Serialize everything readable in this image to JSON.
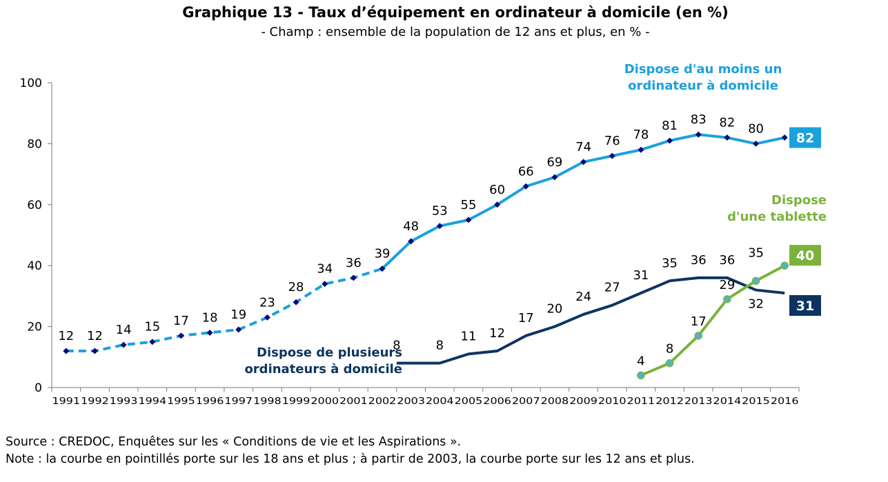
{
  "header": {
    "title": "Graphique 13 - Taux d’équipement en ordinateur à domicile (en %)",
    "subtitle": "- Champ : ensemble de la population de 12 ans et plus, en % -"
  },
  "footer": {
    "source": "Source : CREDOC, Enquêtes sur les « Conditions de vie et les Aspirations ».",
    "note": "Note : la courbe en pointillés porte sur les 18 ans et plus ; à partir de 2003, la courbe porte sur les 12 ans et plus."
  },
  "chart_data": {
    "type": "line",
    "title": "Graphique 13 - Taux d’équipement en ordinateur à domicile (en %)",
    "subtitle": "- Champ : ensemble de la population de 12 ans et plus, en % -",
    "xlabel": "",
    "ylabel": "",
    "ylim": [
      0,
      100
    ],
    "yticks": [
      0,
      20,
      40,
      60,
      80,
      100
    ],
    "x": [
      "1991",
      "1992",
      "1993",
      "1994",
      "1995",
      "1996",
      "1997",
      "1998",
      "1999",
      "2000",
      "2001",
      "2002",
      "2003",
      "2004",
      "2005",
      "2006",
      "2007",
      "2008",
      "2009",
      "2010",
      "2011",
      "2012",
      "2013",
      "2014",
      "2015",
      "2016"
    ],
    "grid": false,
    "series": [
      {
        "name": "Dispose d'au moins un ordinateur à domicile",
        "name_lines": [
          "Dispose d'au moins un",
          "ordinateur à domicile"
        ],
        "color": "#1aa1de",
        "marker_color": "#0a0a78",
        "dashed_until": "2002",
        "values": [
          12,
          12,
          14,
          15,
          17,
          18,
          19,
          23,
          28,
          34,
          36,
          39,
          48,
          53,
          55,
          60,
          66,
          69,
          74,
          76,
          78,
          81,
          83,
          82,
          80,
          82
        ],
        "end_badge": "82"
      },
      {
        "name": "Dispose de plusieurs ordinateurs à domicile",
        "name_lines": [
          "Dispose de plusieurs",
          "ordinateurs à domicile"
        ],
        "color": "#0d3461",
        "values": [
          null,
          null,
          null,
          null,
          null,
          null,
          null,
          null,
          null,
          null,
          null,
          null,
          8,
          8,
          11,
          12,
          17,
          20,
          24,
          27,
          31,
          35,
          36,
          36,
          32,
          31
        ],
        "end_badge": "31"
      },
      {
        "name": "Dispose d'une tablette",
        "name_lines": [
          "Dispose",
          "d'une tablette"
        ],
        "color": "#7bb23b",
        "marker_color": "#4fb3cf",
        "values": [
          null,
          null,
          null,
          null,
          null,
          null,
          null,
          null,
          null,
          null,
          null,
          null,
          null,
          null,
          null,
          null,
          null,
          null,
          null,
          null,
          4,
          8,
          17,
          29,
          35,
          40
        ],
        "end_badge": "40"
      }
    ]
  }
}
